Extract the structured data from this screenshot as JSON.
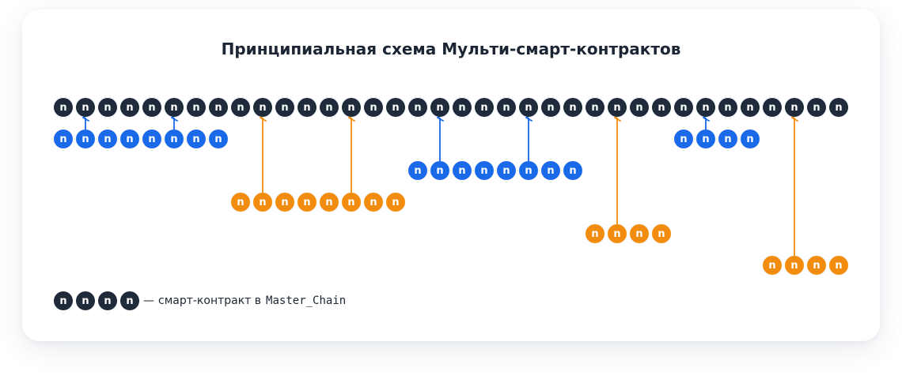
{
  "title": "Принципиальная схема Мульти-смарт-контрактов",
  "node_label": "n",
  "colors": {
    "master": "#1f2a3a",
    "blue": "#1a6ae8",
    "orange": "#f28c0f"
  },
  "master_chain": {
    "node_count": 36
  },
  "sub_chains": [
    {
      "name": "blue-1",
      "color": "blue",
      "node_count": 8,
      "first_index": 0,
      "level": 1,
      "links": [
        1,
        5
      ]
    },
    {
      "name": "orange-1",
      "color": "orange",
      "node_count": 8,
      "first_index": 8,
      "level": 3,
      "links": [
        9,
        13
      ]
    },
    {
      "name": "blue-2",
      "color": "blue",
      "node_count": 8,
      "first_index": 16,
      "level": 2,
      "links": [
        17,
        21
      ]
    },
    {
      "name": "orange-2",
      "color": "orange",
      "node_count": 4,
      "first_index": 24,
      "level": 4,
      "links": [
        25
      ]
    },
    {
      "name": "blue-3",
      "color": "blue",
      "node_count": 4,
      "first_index": 28,
      "level": 1,
      "links": [
        29
      ]
    },
    {
      "name": "orange-3",
      "color": "orange",
      "node_count": 4,
      "first_index": 32,
      "level": 5,
      "links": [
        33
      ]
    }
  ],
  "legend": {
    "node_count": 4,
    "dash": "—",
    "text": "смарт-контракт в",
    "code": "Master_Chain"
  }
}
